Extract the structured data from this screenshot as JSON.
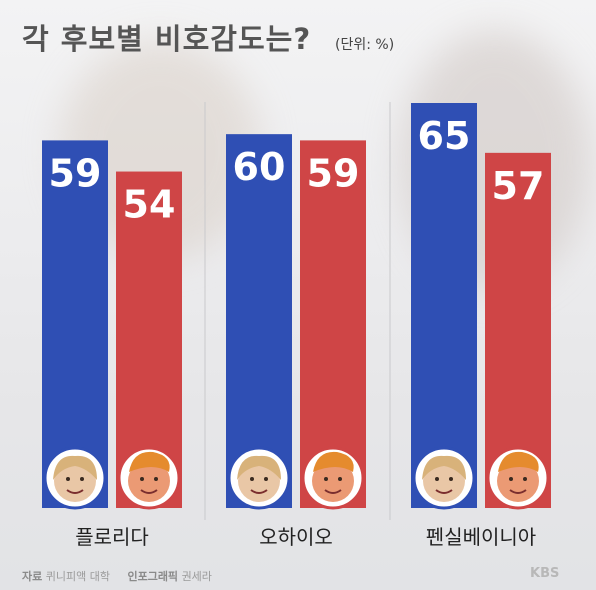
{
  "title": "각 후보별 비호감도는?",
  "unit": "(단위: %)",
  "footer": {
    "source_label": "자료",
    "source": "퀴니피액 대학",
    "graphic_label": "인포그래픽",
    "graphic": "권세라"
  },
  "logo": "KBS",
  "colors": {
    "blue": "#2f4fb4",
    "red": "#cf4546",
    "label": "#ffffff"
  },
  "icons": {
    "blue_candidate": "candidate-face-icon",
    "red_candidate": "candidate-face-icon"
  },
  "chart_data": {
    "type": "bar",
    "categories": [
      "플로리다",
      "오하이오",
      "펜실베이니아"
    ],
    "series": [
      {
        "values": [
          59,
          60,
          65
        ],
        "color": "#2f4fb4"
      },
      {
        "values": [
          54,
          59,
          57
        ],
        "color": "#cf4546"
      }
    ],
    "ylim": [
      0,
      65
    ],
    "grid": false,
    "legend": "none"
  }
}
